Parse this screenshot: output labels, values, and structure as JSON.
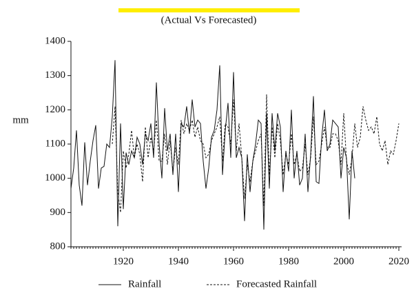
{
  "chart_data": {
    "type": "line",
    "subtitle": "(Actual Vs Forecasted)",
    "y_label": "mm",
    "x": [
      1901,
      1902,
      1903,
      1904,
      1905,
      1906,
      1907,
      1908,
      1909,
      1910,
      1911,
      1912,
      1913,
      1914,
      1915,
      1916,
      1917,
      1918,
      1919,
      1920,
      1921,
      1922,
      1923,
      1924,
      1925,
      1926,
      1927,
      1928,
      1929,
      1930,
      1931,
      1932,
      1933,
      1934,
      1935,
      1936,
      1937,
      1938,
      1939,
      1940,
      1941,
      1942,
      1943,
      1944,
      1945,
      1946,
      1947,
      1948,
      1949,
      1950,
      1951,
      1952,
      1953,
      1954,
      1955,
      1956,
      1957,
      1958,
      1959,
      1960,
      1961,
      1962,
      1963,
      1964,
      1965,
      1966,
      1967,
      1968,
      1969,
      1970,
      1971,
      1972,
      1973,
      1974,
      1975,
      1976,
      1977,
      1978,
      1979,
      1980,
      1981,
      1982,
      1983,
      1984,
      1985,
      1986,
      1987,
      1988,
      1989,
      1990,
      1991,
      1992,
      1993,
      1994,
      1995,
      1996,
      1997,
      1998,
      1999,
      2000,
      2001,
      2002,
      2003,
      2004,
      2005,
      2006,
      2007,
      2008,
      2009,
      2010,
      2011,
      2012,
      2013,
      2014,
      2015,
      2016,
      2017,
      2018,
      2019,
      2020
    ],
    "series": [
      {
        "name": "Rainfall",
        "color": "#111111",
        "dash": false,
        "values": [
          970,
          1030,
          1140,
          980,
          920,
          1105,
          980,
          1050,
          1110,
          1155,
          970,
          1030,
          1035,
          1100,
          1090,
          1180,
          1345,
          860,
          1160,
          910,
          1075,
          1040,
          1080,
          1060,
          1120,
          1100,
          1040,
          1130,
          1110,
          1160,
          1060,
          1280,
          1100,
          1000,
          1205,
          1080,
          1130,
          1010,
          1130,
          960,
          1160,
          1150,
          1210,
          1130,
          1230,
          1150,
          1170,
          1160,
          1050,
          970,
          1030,
          1120,
          1140,
          1200,
          1330,
          1010,
          1140,
          1220,
          1060,
          1310,
          1060,
          1090,
          1060,
          875,
          1070,
          960,
          1050,
          1100,
          1170,
          1160,
          850,
          1190,
          970,
          1190,
          1080,
          1190,
          1150,
          960,
          1080,
          1020,
          1200,
          1000,
          1080,
          980,
          1000,
          1130,
          960,
          1070,
          1240,
          990,
          985,
          1120,
          1200,
          1080,
          1100,
          1170,
          1160,
          1150,
          1000,
          1090,
          1060,
          880,
          1080,
          1000,
          null,
          null,
          null,
          null,
          null,
          null,
          null,
          null,
          null,
          null,
          null,
          null,
          null,
          null,
          null,
          null
        ]
      },
      {
        "name": "Forecasted Rainfall",
        "color": "#111111",
        "dash": true,
        "values": [
          null,
          null,
          null,
          null,
          null,
          null,
          null,
          null,
          null,
          null,
          null,
          null,
          null,
          null,
          null,
          1100,
          1210,
          960,
          900,
          1080,
          1030,
          1070,
          1140,
          1060,
          1100,
          1070,
          990,
          1150,
          1060,
          1120,
          1080,
          1170,
          1050,
          1050,
          1130,
          1040,
          1110,
          1020,
          1090,
          1040,
          1170,
          1130,
          1160,
          1140,
          1170,
          1120,
          1150,
          1110,
          1100,
          1060,
          1070,
          1110,
          1130,
          1150,
          1180,
          1050,
          1160,
          1150,
          1100,
          1230,
          1080,
          1160,
          1060,
          940,
          1040,
          990,
          1050,
          1080,
          1110,
          1130,
          920,
          1245,
          1010,
          1150,
          1060,
          1160,
          1110,
          1010,
          1070,
          1040,
          1130,
          1040,
          1070,
          1020,
          1030,
          1100,
          1010,
          1060,
          1180,
          1040,
          1050,
          1100,
          1150,
          1090,
          1090,
          1130,
          1130,
          1110,
          1040,
          1190,
          1050,
          1010,
          1060,
          1160,
          1090,
          1120,
          1210,
          1170,
          1140,
          1150,
          1130,
          1180,
          1100,
          1080,
          1110,
          1040,
          1080,
          1070,
          1110,
          1160
        ]
      }
    ],
    "xlim": [
      1901,
      2021
    ],
    "xticks": [
      1920,
      1940,
      1960,
      1980,
      2000,
      2020
    ],
    "ylim": [
      800,
      1400
    ],
    "yticks": [
      800,
      900,
      1000,
      1100,
      1200,
      1300,
      1400
    ],
    "legend": "bottom"
  }
}
